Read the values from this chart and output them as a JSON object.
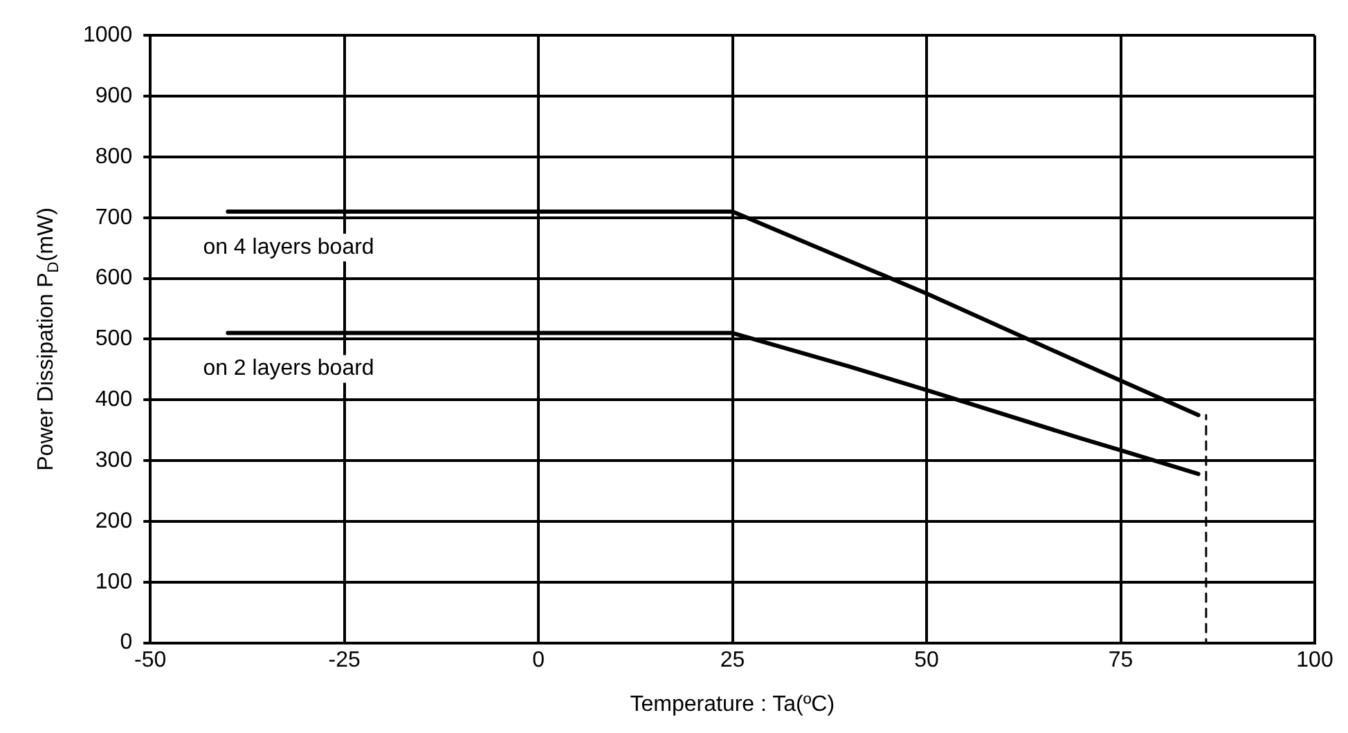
{
  "chart_data": {
    "type": "line",
    "xlabel": "Temperature : Ta(ºC)",
    "ylabel": "Power Dissipation P$_{D}$(mW)",
    "xlim": [
      -50,
      100
    ],
    "xticks": [
      -50,
      -25,
      0,
      25,
      50,
      75,
      100
    ],
    "ylim": [
      0,
      1000
    ],
    "yticks": [
      0,
      100,
      200,
      300,
      400,
      500,
      600,
      700,
      800,
      900,
      1000
    ],
    "grid": true,
    "legend": false,
    "marker": "none",
    "series": [
      {
        "name": "on 4 layers board",
        "color": "#000000",
        "x": [
          -40,
          25,
          50,
          70,
          85
        ],
        "values": [
          710,
          710,
          575,
          460,
          375
        ]
      },
      {
        "name": "on 2 layers board",
        "color": "#000000",
        "x": [
          -40,
          25,
          40,
          50,
          70,
          75,
          85
        ],
        "values": [
          510,
          510,
          455,
          416,
          336,
          317,
          278
        ]
      },
      {
        "color": "#000000",
        "x": [
          86,
          86
        ],
        "values": [
          0,
          375
        ],
        "line_style": "dashed"
      }
    ]
  }
}
